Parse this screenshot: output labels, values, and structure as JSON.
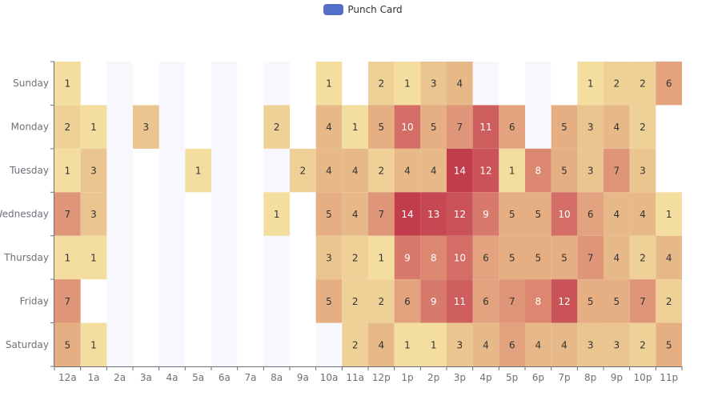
{
  "legend": {
    "label": "Punch Card",
    "color": "#5470c6"
  },
  "chart_data": {
    "type": "heatmap",
    "title": "",
    "series_name": "Punch Card",
    "x_categories": [
      "12a",
      "1a",
      "2a",
      "3a",
      "4a",
      "5a",
      "6a",
      "7a",
      "8a",
      "9a",
      "10a",
      "11a",
      "12p",
      "1p",
      "2p",
      "3p",
      "4p",
      "5p",
      "6p",
      "7p",
      "8p",
      "9p",
      "10p",
      "11p"
    ],
    "y_categories": [
      "Sunday",
      "Monday",
      "Tuesday",
      "Wednesday",
      "Thursday",
      "Friday",
      "Saturday"
    ],
    "values": [
      [
        1,
        0,
        0,
        0,
        0,
        0,
        0,
        0,
        0,
        0,
        1,
        0,
        2,
        1,
        3,
        4,
        0,
        0,
        0,
        0,
        1,
        2,
        2,
        6
      ],
      [
        2,
        1,
        0,
        3,
        0,
        0,
        0,
        0,
        2,
        0,
        4,
        1,
        5,
        10,
        5,
        7,
        11,
        6,
        0,
        5,
        3,
        4,
        2,
        0
      ],
      [
        1,
        3,
        0,
        0,
        0,
        1,
        0,
        0,
        0,
        2,
        4,
        4,
        2,
        4,
        4,
        14,
        12,
        1,
        8,
        5,
        3,
        7,
        3,
        0
      ],
      [
        7,
        3,
        0,
        0,
        0,
        0,
        0,
        0,
        1,
        0,
        5,
        4,
        7,
        14,
        13,
        12,
        9,
        5,
        5,
        10,
        6,
        4,
        4,
        1
      ],
      [
        1,
        1,
        0,
        0,
        0,
        0,
        0,
        0,
        0,
        0,
        3,
        2,
        1,
        9,
        8,
        10,
        6,
        5,
        5,
        5,
        7,
        4,
        2,
        4
      ],
      [
        7,
        0,
        0,
        0,
        0,
        0,
        0,
        0,
        0,
        0,
        5,
        2,
        2,
        6,
        9,
        11,
        6,
        7,
        8,
        12,
        5,
        5,
        7,
        2
      ],
      [
        5,
        1,
        0,
        0,
        0,
        0,
        0,
        0,
        0,
        0,
        0,
        2,
        4,
        1,
        1,
        3,
        4,
        6,
        4,
        4,
        3,
        3,
        2,
        5
      ]
    ],
    "value_range": [
      0,
      14
    ],
    "color_scale": [
      "#f3dea0",
      "#e8bd8b",
      "#e2a17d",
      "#d97d6c",
      "#cc5a5c",
      "#c23d4c"
    ],
    "split_area_colors": [
      "#f7f8fd",
      "#ffffff"
    ]
  }
}
